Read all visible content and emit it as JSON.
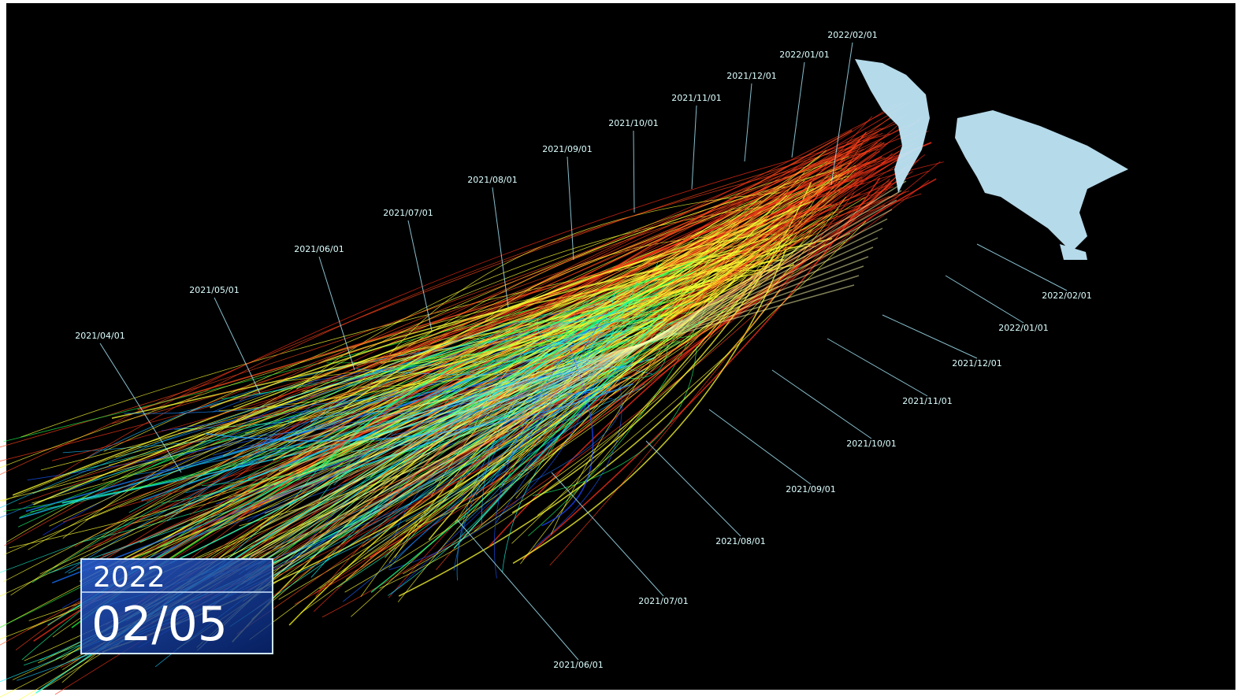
{
  "timeline_labels": {
    "top": [
      "2022/02/01",
      "2022/01/01",
      "2021/12/01",
      "2021/11/01",
      "2021/10/01",
      "2021/09/01",
      "2021/08/01",
      "2021/07/01",
      "2021/06/01",
      "2021/05/01",
      "2021/04/01"
    ],
    "right": [
      "2022/02/01",
      "2022/01/01",
      "2021/12/01",
      "2021/11/01",
      "2021/10/01",
      "2021/09/01",
      "2021/08/01",
      "2021/07/01",
      "2021/06/01"
    ]
  },
  "date_box": {
    "year": "2022",
    "date": "02/05"
  }
}
